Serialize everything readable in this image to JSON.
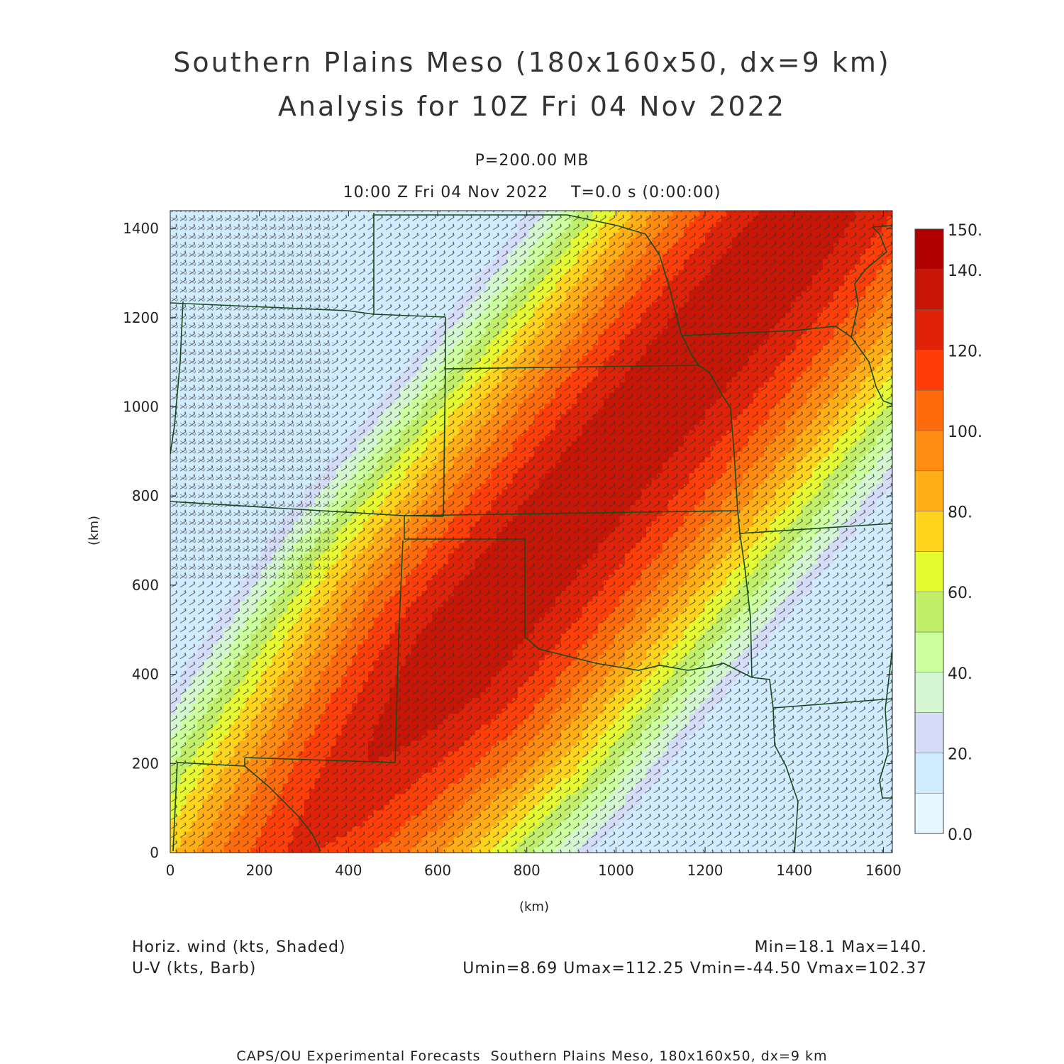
{
  "header": {
    "title_line1": "Southern Plains Meso (180x160x50, dx=9 km)",
    "title_line2": "Analysis for 10Z Fri 04 Nov 2022",
    "level": "P=200.00 MB",
    "valid_time": "10:00 Z Fri 04 Nov 2022    T=0.0 s (0:00:00)"
  },
  "axes": {
    "x_label": "(km)",
    "y_label": "(km)",
    "x_ticks": [
      "0",
      "200",
      "400",
      "600",
      "800",
      "1000",
      "1200",
      "1400",
      "1600"
    ],
    "x_tick_values": [
      0,
      200,
      400,
      600,
      800,
      1000,
      1200,
      1400,
      1600
    ],
    "y_ticks": [
      "0",
      "200",
      "400",
      "600",
      "800",
      "1000",
      "1200",
      "1400"
    ],
    "y_tick_values": [
      0,
      200,
      400,
      600,
      800,
      1000,
      1200,
      1400
    ],
    "x_range_km": [
      0,
      1620
    ],
    "y_range_km": [
      0,
      1440
    ]
  },
  "colorbar": {
    "labels": [
      "150.",
      "140.",
      "120.",
      "100.",
      "80.",
      "60.",
      "40.",
      "20.",
      "0.0"
    ],
    "label_values": [
      150,
      140,
      120,
      100,
      80,
      60,
      40,
      20,
      0
    ],
    "levels": [
      0,
      10,
      20,
      30,
      40,
      50,
      60,
      70,
      80,
      90,
      100,
      110,
      120,
      130,
      140,
      150
    ],
    "colors": [
      "#e6f7ff",
      "#d2ecff",
      "#d4dcf8",
      "#d4f7d2",
      "#ccff9e",
      "#c2ef6a",
      "#e6fa32",
      "#ffd41c",
      "#ffae16",
      "#ff8c10",
      "#ff6a0a",
      "#ff3e08",
      "#e02208",
      "#c81606",
      "#b00000"
    ]
  },
  "footer": {
    "field_shaded": "Horiz. wind (kts, Shaded)",
    "field_barb": "U-V (kts, Barb)",
    "minmax": "Min=18.1 Max=140.",
    "uv_minmax": "Umin=8.69 Umax=112.25 Vmin=-44.50 Vmax=102.37",
    "credit": "CAPS/OU Experimental Forecasts  Southern Plains Meso, 180x160x50, dx=9 km"
  },
  "map_style": {
    "boundary_color": "#1a4a1a",
    "barb_color": "#333333"
  }
}
